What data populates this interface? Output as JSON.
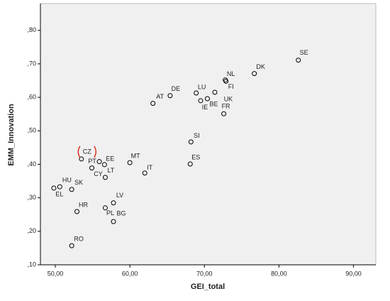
{
  "chart_data": {
    "type": "scatter",
    "x_label": "GEI_total",
    "y_label": "EMM_Innovation",
    "labels": [
      "SE",
      "DK",
      "NL",
      "FI",
      "LU",
      "UK",
      "BE",
      "IE",
      "FR",
      "AT",
      "DE",
      "SI",
      "ES",
      "MT",
      "IT",
      "CZ",
      "EE",
      "PT",
      "CY",
      "LT",
      "HU",
      "EL",
      "SK",
      "HR",
      "LV",
      "PL",
      "BG",
      "RO"
    ],
    "x": [
      82.6,
      76.7,
      72.8,
      72.9,
      68.9,
      71.4,
      70.4,
      69.5,
      72.6,
      63.1,
      65.4,
      68.2,
      68.1,
      60.0,
      62.0,
      53.5,
      56.6,
      55.9,
      54.9,
      56.7,
      50.6,
      49.8,
      52.2,
      52.9,
      57.8,
      56.7,
      57.8,
      52.2
    ],
    "y": [
      0.711,
      0.671,
      0.652,
      0.648,
      0.613,
      0.615,
      0.596,
      0.59,
      0.551,
      0.582,
      0.605,
      0.467,
      0.401,
      0.405,
      0.374,
      0.416,
      0.399,
      0.408,
      0.389,
      0.361,
      0.333,
      0.329,
      0.325,
      0.259,
      0.285,
      0.27,
      0.229,
      0.157
    ],
    "color": "#000000",
    "background": "#f0f0f0",
    "highlight_color": "#e03020",
    "highlight": "CZ",
    "xlim": [
      48,
      93
    ],
    "ylim": [
      0.1,
      0.88
    ],
    "xticks": [
      {
        "value": 50,
        "label": "50,00"
      },
      {
        "value": 60,
        "label": "60,00"
      },
      {
        "value": 70,
        "label": "70,00"
      },
      {
        "value": 80,
        "label": "80,00"
      },
      {
        "value": 90,
        "label": "90,00"
      }
    ],
    "yticks": [
      {
        "value": 0.1,
        "label": ",10"
      },
      {
        "value": 0.2,
        "label": ",20"
      },
      {
        "value": 0.3,
        "label": ",30"
      },
      {
        "value": 0.4,
        "label": ",40"
      },
      {
        "value": 0.5,
        "label": ",50"
      },
      {
        "value": 0.6,
        "label": ",60"
      },
      {
        "value": 0.7,
        "label": ",70"
      },
      {
        "value": 0.8,
        "label": ",80"
      }
    ]
  }
}
